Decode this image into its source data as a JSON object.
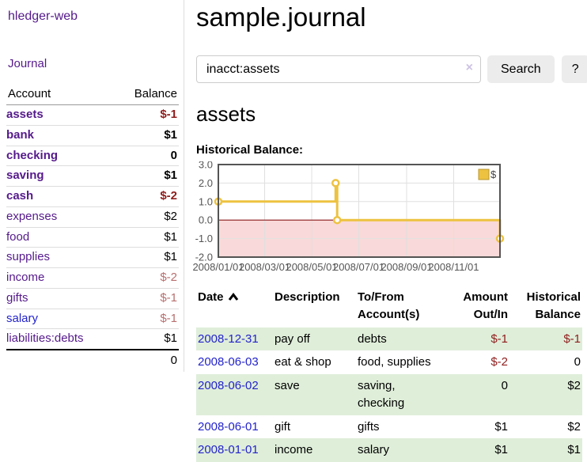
{
  "sidebar": {
    "brand": "hledger-web",
    "nav_journal": "Journal",
    "accounts": {
      "header_account": "Account",
      "header_balance": "Balance",
      "rows": [
        {
          "name": "assets",
          "balance": "$-1",
          "depth": 1,
          "bold": true,
          "neg": "strong"
        },
        {
          "name": "bank",
          "balance": "$1",
          "depth": 2,
          "bold": true
        },
        {
          "name": "checking",
          "balance": "0",
          "depth": 3,
          "bold": true
        },
        {
          "name": "saving",
          "balance": "$1",
          "depth": 3,
          "bold": true
        },
        {
          "name": "cash",
          "balance": "$-2",
          "depth": 2,
          "bold": true,
          "neg": "strong"
        },
        {
          "name": "expenses",
          "balance": "$2",
          "depth": 1
        },
        {
          "name": "food",
          "balance": "$1",
          "depth": 2
        },
        {
          "name": "supplies",
          "balance": "$1",
          "depth": 2
        },
        {
          "name": "income",
          "balance": "$-2",
          "depth": 1,
          "neg": "soft"
        },
        {
          "name": "gifts",
          "balance": "$-1",
          "depth": 2,
          "neg": "soft"
        },
        {
          "name": "salary",
          "balance": "$-1",
          "depth": 2,
          "neg": "soft",
          "blue": true
        },
        {
          "name": "liabilities:debts",
          "balance": "$1",
          "depth": 1
        }
      ],
      "total": "0"
    }
  },
  "main": {
    "title": "sample.journal",
    "search": {
      "value": "inacct:assets",
      "clear_icon": "×",
      "button_label": "Search",
      "help_label": "?"
    },
    "account_heading": "assets",
    "chart_label": "Historical Balance:"
  },
  "register": {
    "columns": [
      {
        "key": "date",
        "label": "Date",
        "label2": "",
        "align": "left",
        "sortable": true
      },
      {
        "key": "description",
        "label": "Description",
        "label2": "",
        "align": "left"
      },
      {
        "key": "accounts",
        "label": "To/From",
        "label2": "Account(s)",
        "align": "left"
      },
      {
        "key": "amount",
        "label": "Amount",
        "label2": "Out/In",
        "align": "right"
      },
      {
        "key": "balance",
        "label": "Historical",
        "label2": "Balance",
        "align": "right"
      }
    ],
    "rows": [
      {
        "date": "2008-12-31",
        "description": "pay off",
        "accounts": "debts",
        "amount": "$-1",
        "balance": "$-1",
        "amount_neg": true,
        "balance_neg": true,
        "shaded": true
      },
      {
        "date": "2008-06-03",
        "description": "eat & shop",
        "accounts": "food, supplies",
        "amount": "$-2",
        "balance": "0",
        "amount_neg": true,
        "shaded": false
      },
      {
        "date": "2008-06-02",
        "description": "save",
        "accounts": "saving,\nchecking",
        "amount": "0",
        "balance": "$2",
        "shaded": true
      },
      {
        "date": "2008-06-01",
        "description": "gift",
        "accounts": "gifts",
        "amount": "$1",
        "balance": "$2",
        "shaded": false
      },
      {
        "date": "2008-01-01",
        "description": "income",
        "accounts": "salary",
        "amount": "$1",
        "balance": "$1",
        "shaded": true
      }
    ]
  },
  "chart_data": {
    "type": "line",
    "title": "Historical Balance",
    "legend": {
      "label": "$",
      "position": "top-right"
    },
    "series": [
      {
        "name": "$",
        "color": "#edc240",
        "step": true,
        "points": [
          {
            "date": "2008-01-01",
            "day": 0,
            "value": 1
          },
          {
            "date": "2008-06-01",
            "day": 152,
            "value": 2
          },
          {
            "date": "2008-06-03",
            "day": 154,
            "value": 0
          },
          {
            "date": "2008-12-31",
            "day": 365,
            "value": -1
          }
        ]
      }
    ],
    "x_ticks": [
      {
        "label": "2008/01/01",
        "day": 0
      },
      {
        "label": "2008/03/01",
        "day": 60
      },
      {
        "label": "2008/05/01",
        "day": 121
      },
      {
        "label": "2008/07/01",
        "day": 182
      },
      {
        "label": "2008/09/01",
        "day": 244
      },
      {
        "label": "2008/11/01",
        "day": 305
      }
    ],
    "y_ticks": [
      {
        "label": "3.0",
        "value": 3
      },
      {
        "label": "2.0",
        "value": 2
      },
      {
        "label": "1.0",
        "value": 1
      },
      {
        "label": "0.0",
        "value": 0
      },
      {
        "label": "-1.0",
        "value": -1
      },
      {
        "label": "-2.0",
        "value": -2
      }
    ],
    "xlim_days": [
      0,
      365
    ],
    "ylim": [
      -2,
      3
    ],
    "grid": true,
    "gridline_color": "#e0e0e0",
    "negative_region_color": "#f9d9d9",
    "zero_line_color": "#8b1a1a",
    "axis_border_color": "#545454",
    "tick_label_color": "#555555"
  }
}
